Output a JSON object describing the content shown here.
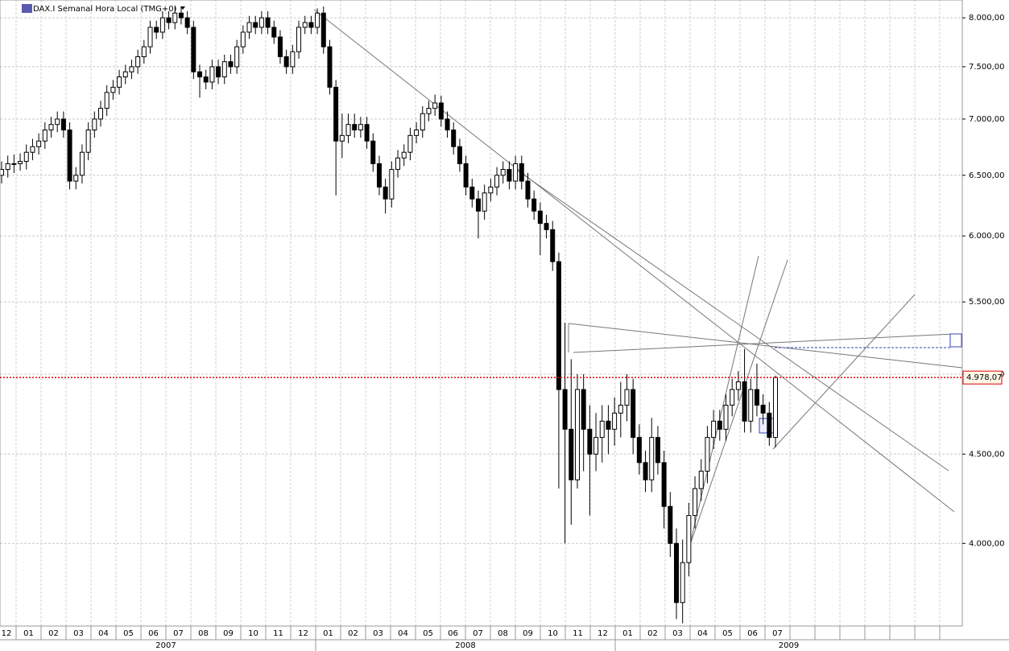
{
  "chart_data": {
    "type": "candlestick",
    "title": "DAX.I Semanal Hora Local (TMG+0)",
    "log_scale": true,
    "grid": true,
    "ylim": [
      3587,
      8190
    ],
    "yticks": [
      {
        "value": 4000,
        "label": "4.000,00"
      },
      {
        "value": 4500,
        "label": "4.500,00"
      },
      {
        "value": 5000,
        "label": "5.000,00"
      },
      {
        "value": 5500,
        "label": "5.500,00"
      },
      {
        "value": 6000,
        "label": "6.000,00"
      },
      {
        "value": 6500,
        "label": "6.500,00"
      },
      {
        "value": 7000,
        "label": "7.000,00"
      },
      {
        "value": 7500,
        "label": "7.500,00"
      },
      {
        "value": 8000,
        "label": "8.000,00"
      }
    ],
    "last_price": {
      "value": 4978.07,
      "label": "4.978,07"
    },
    "months": [
      "12",
      "01",
      "02",
      "03",
      "04",
      "05",
      "06",
      "07",
      "08",
      "09",
      "10",
      "11",
      "12",
      "01",
      "02",
      "03",
      "04",
      "05",
      "06",
      "07",
      "08",
      "09",
      "10",
      "11",
      "12",
      "01",
      "02",
      "03",
      "04",
      "05",
      "06",
      "07"
    ],
    "years": [
      "2007",
      "2008",
      "2009"
    ],
    "up_color": "#ffffff",
    "down_color": "#000000",
    "candles": [
      [
        6500,
        6620,
        6430,
        6550
      ],
      [
        6550,
        6670,
        6480,
        6600
      ],
      [
        6600,
        6680,
        6520,
        6600
      ],
      [
        6600,
        6690,
        6540,
        6620
      ],
      [
        6620,
        6770,
        6550,
        6700
      ],
      [
        6700,
        6820,
        6630,
        6750
      ],
      [
        6750,
        6870,
        6680,
        6800
      ],
      [
        6800,
        6970,
        6730,
        6900
      ],
      [
        6900,
        7020,
        6830,
        6950
      ],
      [
        6950,
        7070,
        6880,
        7000
      ],
      [
        7000,
        7070,
        6830,
        6900
      ],
      [
        6900,
        6970,
        6380,
        6450
      ],
      [
        6450,
        6570,
        6380,
        6500
      ],
      [
        6500,
        6770,
        6430,
        6700
      ],
      [
        6700,
        6970,
        6630,
        6900
      ],
      [
        6900,
        7070,
        6830,
        7000
      ],
      [
        7000,
        7170,
        6930,
        7100
      ],
      [
        7100,
        7320,
        7030,
        7250
      ],
      [
        7250,
        7370,
        7180,
        7300
      ],
      [
        7300,
        7470,
        7230,
        7400
      ],
      [
        7400,
        7520,
        7330,
        7450
      ],
      [
        7450,
        7570,
        7380,
        7500
      ],
      [
        7500,
        7670,
        7430,
        7600
      ],
      [
        7600,
        7770,
        7530,
        7700
      ],
      [
        7700,
        7970,
        7630,
        7900
      ],
      [
        7900,
        7970,
        7780,
        7850
      ],
      [
        7850,
        8070,
        7780,
        8000
      ],
      [
        8000,
        8070,
        7880,
        7950
      ],
      [
        7950,
        8120,
        7880,
        8050
      ],
      [
        8050,
        8120,
        7930,
        8000
      ],
      [
        8000,
        8070,
        7830,
        7900
      ],
      [
        7900,
        7970,
        7380,
        7450
      ],
      [
        7450,
        7520,
        7200,
        7400
      ],
      [
        7400,
        7470,
        7280,
        7350
      ],
      [
        7350,
        7570,
        7280,
        7500
      ],
      [
        7500,
        7570,
        7330,
        7400
      ],
      [
        7400,
        7620,
        7330,
        7550
      ],
      [
        7550,
        7620,
        7430,
        7500
      ],
      [
        7500,
        7770,
        7430,
        7700
      ],
      [
        7700,
        7920,
        7630,
        7850
      ],
      [
        7850,
        8020,
        7780,
        7950
      ],
      [
        7950,
        8020,
        7830,
        7900
      ],
      [
        7900,
        8070,
        7830,
        8000
      ],
      [
        8000,
        8070,
        7830,
        7900
      ],
      [
        7900,
        7970,
        7730,
        7800
      ],
      [
        7800,
        7870,
        7530,
        7600
      ],
      [
        7600,
        7670,
        7430,
        7500
      ],
      [
        7500,
        7720,
        7430,
        7650
      ],
      [
        7650,
        7970,
        7580,
        7900
      ],
      [
        7900,
        8020,
        7830,
        7950
      ],
      [
        7950,
        8020,
        7830,
        7900
      ],
      [
        7900,
        8100,
        7830,
        8050
      ],
      [
        8050,
        8120,
        7630,
        7700
      ],
      [
        7700,
        7770,
        7230,
        7300
      ],
      [
        7300,
        7370,
        6330,
        6800
      ],
      [
        6800,
        7050,
        6650,
        6850
      ],
      [
        6850,
        7050,
        6780,
        6950
      ],
      [
        6950,
        7050,
        6830,
        6900
      ],
      [
        6900,
        7020,
        6830,
        6950
      ],
      [
        6950,
        7020,
        6730,
        6800
      ],
      [
        6800,
        6870,
        6530,
        6600
      ],
      [
        6600,
        6670,
        6330,
        6400
      ],
      [
        6400,
        6470,
        6180,
        6300
      ],
      [
        6300,
        6620,
        6230,
        6550
      ],
      [
        6550,
        6720,
        6480,
        6650
      ],
      [
        6650,
        6770,
        6580,
        6700
      ],
      [
        6700,
        6920,
        6630,
        6850
      ],
      [
        6850,
        6970,
        6780,
        6900
      ],
      [
        6900,
        7120,
        6830,
        7050
      ],
      [
        7050,
        7170,
        6980,
        7100
      ],
      [
        7100,
        7230,
        7030,
        7150
      ],
      [
        7150,
        7220,
        6930,
        7000
      ],
      [
        7000,
        7070,
        6830,
        6900
      ],
      [
        6900,
        6970,
        6680,
        6750
      ],
      [
        6750,
        6820,
        6530,
        6600
      ],
      [
        6600,
        6670,
        6330,
        6400
      ],
      [
        6400,
        6470,
        6230,
        6300
      ],
      [
        6300,
        6370,
        5980,
        6200
      ],
      [
        6200,
        6420,
        6130,
        6350
      ],
      [
        6350,
        6470,
        6280,
        6400
      ],
      [
        6400,
        6570,
        6330,
        6500
      ],
      [
        6500,
        6620,
        6430,
        6550
      ],
      [
        6550,
        6620,
        6380,
        6450
      ],
      [
        6450,
        6670,
        6380,
        6600
      ],
      [
        6600,
        6670,
        6380,
        6450
      ],
      [
        6450,
        6520,
        6230,
        6300
      ],
      [
        6300,
        6370,
        6130,
        6200
      ],
      [
        6200,
        6270,
        5850,
        6100
      ],
      [
        6100,
        6170,
        5980,
        6050
      ],
      [
        6050,
        6120,
        5730,
        5800
      ],
      [
        5800,
        5870,
        4300,
        4900
      ],
      [
        4900,
        5350,
        4000,
        4650
      ],
      [
        4650,
        5100,
        4100,
        4350
      ],
      [
        4350,
        5000,
        4300,
        4900
      ],
      [
        4900,
        5000,
        4400,
        4650
      ],
      [
        4650,
        4800,
        4150,
        4500
      ],
      [
        4500,
        4750,
        4400,
        4600
      ],
      [
        4600,
        4800,
        4450,
        4700
      ],
      [
        4700,
        4800,
        4500,
        4650
      ],
      [
        4650,
        4850,
        4550,
        4750
      ],
      [
        4750,
        4950,
        4600,
        4800
      ],
      [
        4800,
        5000,
        4700,
        4900
      ],
      [
        4900,
        4970,
        4500,
        4600
      ],
      [
        4600,
        4680,
        4380,
        4450
      ],
      [
        4450,
        4520,
        4280,
        4350
      ],
      [
        4350,
        4720,
        4280,
        4600
      ],
      [
        4600,
        4670,
        4380,
        4450
      ],
      [
        4450,
        4520,
        4080,
        4200
      ],
      [
        4200,
        4280,
        3930,
        4000
      ],
      [
        4000,
        4080,
        3620,
        3700
      ],
      [
        3700,
        4020,
        3600,
        3900
      ],
      [
        3900,
        4220,
        3830,
        4150
      ],
      [
        4150,
        4370,
        4080,
        4300
      ],
      [
        4300,
        4470,
        4230,
        4400
      ],
      [
        4400,
        4670,
        4330,
        4600
      ],
      [
        4600,
        4770,
        4530,
        4700
      ],
      [
        4700,
        4770,
        4580,
        4650
      ],
      [
        4650,
        4870,
        4580,
        4800
      ],
      [
        4800,
        4970,
        4730,
        4900
      ],
      [
        4900,
        5020,
        4830,
        4950
      ],
      [
        4950,
        5170,
        4630,
        4700
      ],
      [
        4700,
        4970,
        4630,
        4900
      ],
      [
        4900,
        5070,
        4730,
        4800
      ],
      [
        4800,
        4870,
        4680,
        4750
      ],
      [
        4750,
        4820,
        4550,
        4600
      ],
      [
        4600,
        4990,
        4540,
        4978.07
      ]
    ]
  }
}
